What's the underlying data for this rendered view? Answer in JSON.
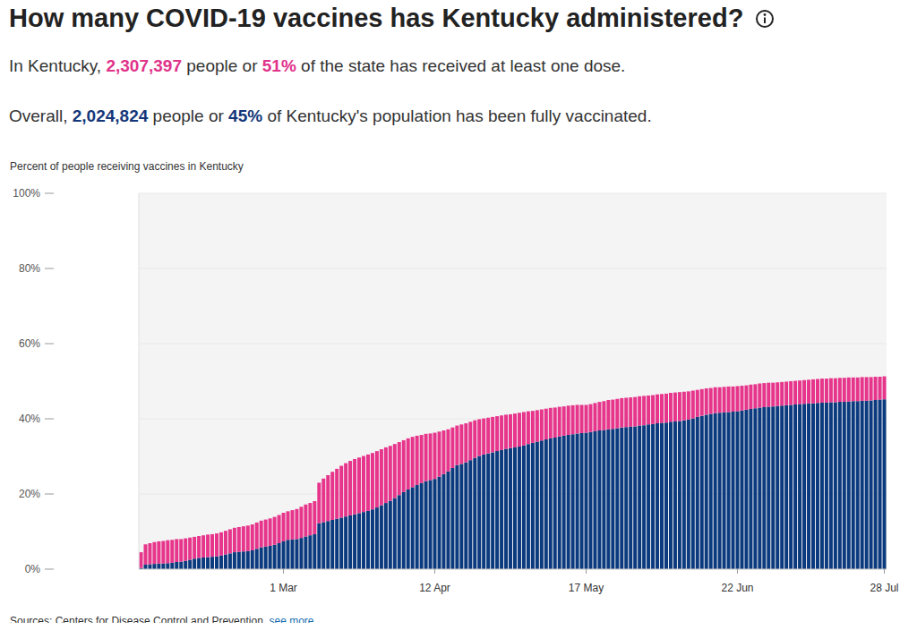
{
  "chart_data": {
    "type": "bar",
    "title": "How many COVID-19 vaccines has Kentucky administered?",
    "subtitle": [
      [
        {
          "text": "In Kentucky, "
        },
        {
          "text": "2,307,397",
          "color": "#e0338a"
        },
        {
          "text": " people or "
        },
        {
          "text": "51%",
          "color": "#e0338a"
        },
        {
          "text": " of the state has received at least one dose."
        }
      ],
      [
        {
          "text": "Overall, "
        },
        {
          "text": "2,024,824",
          "color": "#15377a"
        },
        {
          "text": " people or "
        },
        {
          "text": "45%",
          "color": "#15377a"
        },
        {
          "text": " of Kentucky's population has been fully vaccinated."
        }
      ]
    ],
    "y_label": "Percent of people receiving vaccines in Kentucky",
    "annotations": {
      "source": "Sources: Centers for Disease Control and Prevention.",
      "link": "see more"
    },
    "stacked": true,
    "grid": true,
    "ylim": [
      0,
      100
    ],
    "yticks": [
      {
        "value": 0,
        "label": "0%"
      },
      {
        "value": 20,
        "label": "20%"
      },
      {
        "value": 40,
        "label": "40%"
      },
      {
        "value": 60,
        "label": "60%"
      },
      {
        "value": 80,
        "label": "80%"
      },
      {
        "value": 100,
        "label": "100%"
      }
    ],
    "categories": [
      null,
      null,
      null,
      null,
      null,
      null,
      null,
      null,
      null,
      null,
      null,
      null,
      null,
      null,
      null,
      null,
      null,
      null,
      null,
      null,
      null,
      null,
      null,
      null,
      null,
      null,
      null,
      null,
      null,
      null,
      null,
      null,
      "1 Mar",
      null,
      null,
      null,
      null,
      null,
      null,
      null,
      null,
      null,
      null,
      null,
      null,
      null,
      null,
      null,
      null,
      null,
      null,
      null,
      null,
      null,
      null,
      null,
      null,
      null,
      null,
      null,
      null,
      null,
      null,
      null,
      null,
      null,
      "12 Apr",
      null,
      null,
      null,
      null,
      null,
      null,
      null,
      null,
      null,
      null,
      null,
      null,
      null,
      null,
      null,
      null,
      null,
      null,
      null,
      null,
      null,
      null,
      null,
      null,
      null,
      null,
      null,
      null,
      null,
      null,
      null,
      null,
      null,
      "17 May",
      null,
      null,
      null,
      null,
      null,
      null,
      null,
      null,
      null,
      null,
      null,
      null,
      null,
      null,
      null,
      null,
      null,
      null,
      null,
      null,
      null,
      null,
      null,
      null,
      null,
      null,
      null,
      null,
      null,
      null,
      null,
      null,
      null,
      "22 Jun",
      null,
      null,
      null,
      null,
      null,
      null,
      null,
      null,
      null,
      null,
      null,
      null,
      null,
      null,
      null,
      null,
      null,
      null,
      null,
      null,
      null,
      null,
      null,
      null,
      null,
      null,
      null,
      null,
      null,
      null,
      null,
      null,
      "28 Jul"
    ],
    "series": [
      {
        "color": "#0b3a7e",
        "values": [
          0.3,
          1.2,
          1.3,
          1.4,
          1.5,
          1.5,
          1.6,
          1.7,
          1.9,
          2.0,
          2.2,
          2.5,
          2.8,
          3.0,
          3.1,
          3.2,
          3.3,
          3.4,
          3.6,
          3.9,
          4.2,
          4.5,
          4.6,
          4.7,
          4.8,
          5.0,
          5.4,
          5.8,
          6.0,
          6.2,
          6.5,
          6.9,
          7.4,
          7.8,
          7.9,
          8.0,
          8.3,
          8.7,
          9.0,
          9.3,
          12.2,
          12.5,
          12.8,
          13.1,
          13.4,
          13.7,
          14.0,
          14.3,
          14.6,
          14.9,
          15.2,
          15.5,
          15.9,
          16.4,
          17.0,
          17.6,
          18.2,
          18.9,
          19.7,
          20.5,
          21.2,
          21.8,
          22.4,
          22.9,
          23.4,
          23.7,
          24.0,
          24.6,
          25.3,
          26.0,
          26.9,
          27.7,
          28.0,
          28.4,
          29.0,
          29.6,
          30.1,
          30.5,
          30.8,
          31.1,
          31.4,
          31.7,
          32.0,
          32.2,
          32.4,
          32.6,
          32.9,
          33.3,
          33.6,
          33.9,
          34.2,
          34.5,
          34.8,
          35.0,
          35.3,
          35.5,
          35.7,
          35.9,
          36.1,
          36.2,
          36.3,
          36.5,
          36.7,
          36.9,
          37.0,
          37.2,
          37.3,
          37.5,
          37.7,
          37.8,
          37.9,
          38.0,
          38.2,
          38.3,
          38.5,
          38.6,
          38.8,
          38.9,
          39.0,
          39.2,
          39.3,
          39.4,
          39.6,
          39.8,
          40.1,
          40.5,
          40.8,
          41.1,
          41.3,
          41.5,
          41.6,
          41.7,
          41.8,
          41.9,
          42.0,
          42.2,
          42.4,
          42.6,
          42.8,
          43.0,
          43.1,
          43.2,
          43.3,
          43.4,
          43.5,
          43.6,
          43.7,
          43.8,
          43.9,
          44.0,
          44.1,
          44.1,
          44.2,
          44.3,
          44.3,
          44.4,
          44.4,
          44.5,
          44.5,
          44.6,
          44.7,
          44.7,
          44.8,
          44.8,
          44.9,
          45.0,
          45.1,
          45.2
        ]
      },
      {
        "color": "#e6358b",
        "values": [
          4.2,
          5.4,
          5.6,
          5.8,
          5.9,
          6.0,
          6.1,
          6.1,
          6.1,
          6.0,
          6.0,
          5.9,
          5.8,
          5.8,
          5.9,
          6.0,
          6.0,
          6.1,
          6.2,
          6.3,
          6.4,
          6.5,
          6.6,
          6.7,
          6.8,
          6.9,
          7.0,
          7.1,
          7.2,
          7.3,
          7.4,
          7.5,
          7.6,
          7.6,
          7.8,
          8.0,
          8.3,
          8.5,
          8.6,
          8.8,
          10.8,
          11.6,
          12.2,
          12.8,
          13.3,
          13.8,
          14.2,
          14.5,
          14.7,
          14.8,
          14.9,
          15.0,
          15.0,
          15.0,
          14.9,
          14.8,
          14.6,
          14.4,
          14.1,
          13.8,
          13.6,
          13.4,
          13.1,
          12.8,
          12.6,
          12.4,
          12.3,
          12.0,
          11.6,
          11.2,
          10.8,
          10.5,
          10.5,
          10.4,
          10.2,
          10.0,
          9.8,
          9.6,
          9.5,
          9.4,
          9.3,
          9.2,
          9.1,
          9.0,
          9.0,
          9.0,
          8.9,
          8.7,
          8.5,
          8.4,
          8.3,
          8.2,
          8.1,
          8.0,
          7.9,
          7.8,
          7.8,
          7.7,
          7.6,
          7.5,
          7.4,
          7.4,
          7.5,
          7.6,
          7.7,
          7.8,
          7.8,
          7.8,
          7.8,
          7.8,
          7.8,
          7.8,
          7.8,
          7.8,
          7.7,
          7.7,
          7.7,
          7.7,
          7.7,
          7.7,
          7.7,
          7.7,
          7.6,
          7.5,
          7.4,
          7.2,
          7.1,
          7.0,
          6.9,
          6.9,
          6.8,
          6.8,
          6.8,
          6.7,
          6.7,
          6.6,
          6.5,
          6.5,
          6.4,
          6.4,
          6.4,
          6.4,
          6.3,
          6.3,
          6.3,
          6.3,
          6.3,
          6.3,
          6.3,
          6.3,
          6.3,
          6.4,
          6.4,
          6.4,
          6.4,
          6.4,
          6.4,
          6.4,
          6.4,
          6.4,
          6.3,
          6.3,
          6.3,
          6.3,
          6.2,
          6.2,
          6.1,
          6.1
        ]
      }
    ]
  }
}
